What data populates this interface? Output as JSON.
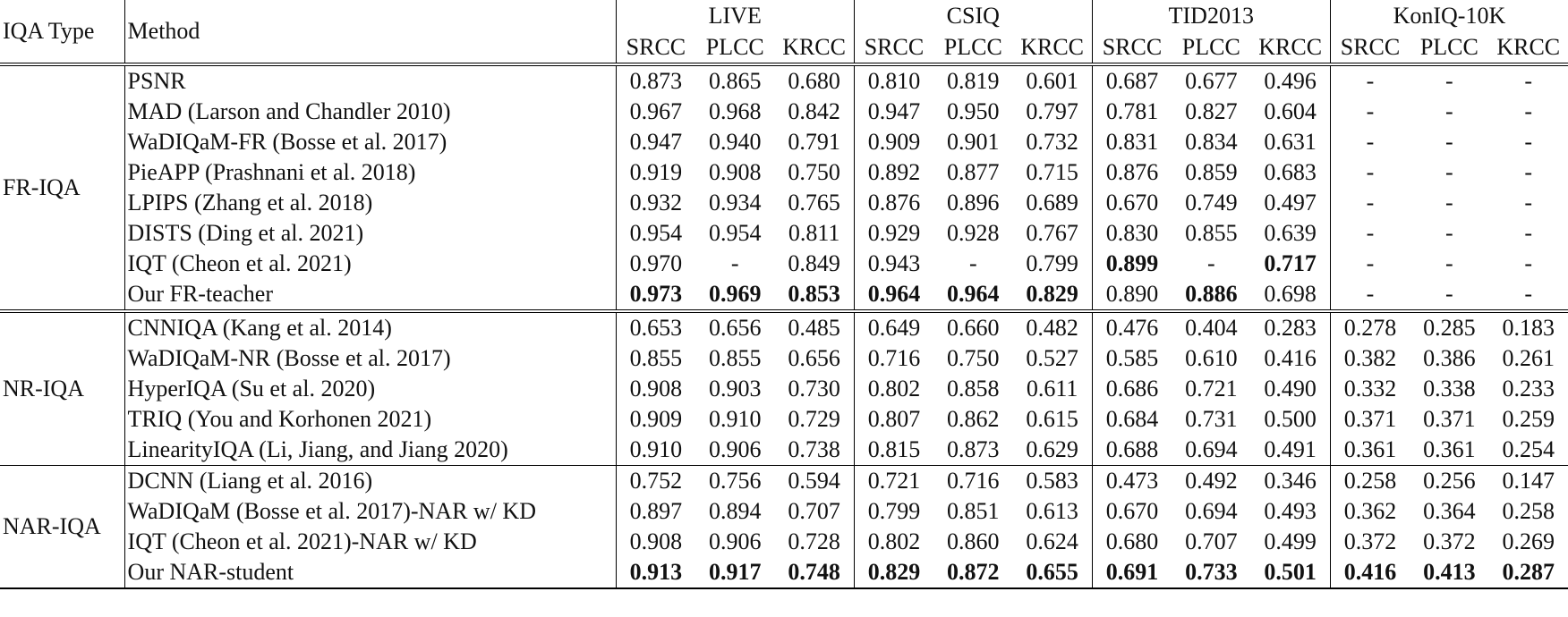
{
  "header": {
    "type_label": "IQA Type",
    "method_label": "Method",
    "datasets": [
      "LIVE",
      "CSIQ",
      "TID2013",
      "KonIQ-10K"
    ],
    "metrics": [
      "SRCC",
      "PLCC",
      "KRCC"
    ]
  },
  "groups": [
    {
      "type": "FR-IQA",
      "rows": [
        {
          "method": "PSNR",
          "scores": [
            "0.873",
            "0.865",
            "0.680",
            "0.810",
            "0.819",
            "0.601",
            "0.687",
            "0.677",
            "0.496",
            "-",
            "-",
            "-"
          ]
        },
        {
          "method": "MAD (Larson and Chandler 2010)",
          "scores": [
            "0.967",
            "0.968",
            "0.842",
            "0.947",
            "0.950",
            "0.797",
            "0.781",
            "0.827",
            "0.604",
            "-",
            "-",
            "-"
          ]
        },
        {
          "method": "WaDIQaM-FR (Bosse et al. 2017)",
          "scores": [
            "0.947",
            "0.940",
            "0.791",
            "0.909",
            "0.901",
            "0.732",
            "0.831",
            "0.834",
            "0.631",
            "-",
            "-",
            "-"
          ]
        },
        {
          "method": "PieAPP (Prashnani et al. 2018)",
          "scores": [
            "0.919",
            "0.908",
            "0.750",
            "0.892",
            "0.877",
            "0.715",
            "0.876",
            "0.859",
            "0.683",
            "-",
            "-",
            "-"
          ]
        },
        {
          "method": "LPIPS (Zhang et al. 2018)",
          "scores": [
            "0.932",
            "0.934",
            "0.765",
            "0.876",
            "0.896",
            "0.689",
            "0.670",
            "0.749",
            "0.497",
            "-",
            "-",
            "-"
          ]
        },
        {
          "method": "DISTS (Ding et al. 2021)",
          "scores": [
            "0.954",
            "0.954",
            "0.811",
            "0.929",
            "0.928",
            "0.767",
            "0.830",
            "0.855",
            "0.639",
            "-",
            "-",
            "-"
          ]
        },
        {
          "method": "IQT (Cheon et al. 2021)",
          "scores": [
            "0.970",
            "-",
            "0.849",
            "0.943",
            "-",
            "0.799",
            "0.899",
            "-",
            "0.717",
            "-",
            "-",
            "-"
          ],
          "bold": [
            6,
            8
          ]
        },
        {
          "method": "Our FR-teacher",
          "scores": [
            "0.973",
            "0.969",
            "0.853",
            "0.964",
            "0.964",
            "0.829",
            "0.890",
            "0.886",
            "0.698",
            "-",
            "-",
            "-"
          ],
          "bold": [
            0,
            1,
            2,
            3,
            4,
            5,
            7
          ]
        }
      ]
    },
    {
      "type": "NR-IQA",
      "rows": [
        {
          "method": "CNNIQA (Kang et al. 2014)",
          "scores": [
            "0.653",
            "0.656",
            "0.485",
            "0.649",
            "0.660",
            "0.482",
            "0.476",
            "0.404",
            "0.283",
            "0.278",
            "0.285",
            "0.183"
          ]
        },
        {
          "method": "WaDIQaM-NR (Bosse et al. 2017)",
          "scores": [
            "0.855",
            "0.855",
            "0.656",
            "0.716",
            "0.750",
            "0.527",
            "0.585",
            "0.610",
            "0.416",
            "0.382",
            "0.386",
            "0.261"
          ]
        },
        {
          "method": "HyperIQA (Su et al. 2020)",
          "scores": [
            "0.908",
            "0.903",
            "0.730",
            "0.802",
            "0.858",
            "0.611",
            "0.686",
            "0.721",
            "0.490",
            "0.332",
            "0.338",
            "0.233"
          ]
        },
        {
          "method": "TRIQ (You and Korhonen 2021)",
          "scores": [
            "0.909",
            "0.910",
            "0.729",
            "0.807",
            "0.862",
            "0.615",
            "0.684",
            "0.731",
            "0.500",
            "0.371",
            "0.371",
            "0.259"
          ]
        },
        {
          "method": "LinearityIQA (Li, Jiang, and Jiang 2020)",
          "scores": [
            "0.910",
            "0.906",
            "0.738",
            "0.815",
            "0.873",
            "0.629",
            "0.688",
            "0.694",
            "0.491",
            "0.361",
            "0.361",
            "0.254"
          ]
        }
      ]
    },
    {
      "type": "NAR-IQA",
      "rows": [
        {
          "method": "DCNN (Liang et al. 2016)",
          "scores": [
            "0.752",
            "0.756",
            "0.594",
            "0.721",
            "0.716",
            "0.583",
            "0.473",
            "0.492",
            "0.346",
            "0.258",
            "0.256",
            "0.147"
          ]
        },
        {
          "method": "WaDIQaM (Bosse et al. 2017)-NAR w/ KD",
          "scores": [
            "0.897",
            "0.894",
            "0.707",
            "0.799",
            "0.851",
            "0.613",
            "0.670",
            "0.694",
            "0.493",
            "0.362",
            "0.364",
            "0.258"
          ]
        },
        {
          "method": "IQT (Cheon et al. 2021)-NAR w/ KD",
          "scores": [
            "0.908",
            "0.906",
            "0.728",
            "0.802",
            "0.860",
            "0.624",
            "0.680",
            "0.707",
            "0.499",
            "0.372",
            "0.372",
            "0.269"
          ]
        },
        {
          "method": "Our NAR-student",
          "scores": [
            "0.913",
            "0.917",
            "0.748",
            "0.829",
            "0.872",
            "0.655",
            "0.691",
            "0.733",
            "0.501",
            "0.416",
            "0.413",
            "0.287"
          ],
          "bold": [
            0,
            1,
            2,
            3,
            4,
            5,
            6,
            7,
            8,
            9,
            10,
            11
          ]
        }
      ]
    }
  ]
}
